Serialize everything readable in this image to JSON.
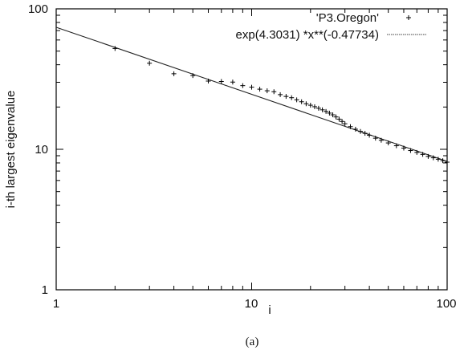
{
  "chart_data": {
    "type": "scatter",
    "title": "",
    "xlabel": "i",
    "ylabel": "i-th largest eigenvalue",
    "x_scale": "log",
    "y_scale": "log",
    "xlim": [
      1,
      100
    ],
    "ylim": [
      1,
      100
    ],
    "x_ticks": [
      "1",
      "10",
      "100"
    ],
    "y_ticks": [
      "1",
      "10",
      "100"
    ],
    "grid": false,
    "legend_position": "top-right",
    "series": [
      {
        "name": "'P3.Oregon'",
        "kind": "points",
        "marker": "+",
        "x": [
          2,
          3,
          4,
          5,
          6,
          7,
          8,
          9,
          10,
          11,
          12,
          13,
          14,
          15,
          16,
          17,
          18,
          19,
          20,
          21,
          22,
          23,
          24,
          25,
          26,
          27,
          28,
          29,
          30,
          32,
          34,
          36,
          38,
          40,
          43,
          46,
          50,
          55,
          60,
          65,
          70,
          75,
          80,
          85,
          90,
          95,
          100
        ],
        "y": [
          52.2,
          41,
          34.5,
          33.5,
          30.6,
          30.4,
          30.1,
          28.4,
          27.7,
          26.8,
          26.1,
          25.7,
          24.5,
          23.8,
          23.3,
          22.5,
          21.8,
          21.1,
          20.6,
          20.1,
          19.6,
          19.1,
          18.6,
          18.1,
          17.6,
          17.0,
          16.4,
          15.8,
          15.2,
          14.5,
          13.9,
          13.4,
          13.0,
          12.6,
          12.0,
          11.6,
          11.1,
          10.6,
          10.2,
          9.8,
          9.5,
          9.2,
          8.9,
          8.7,
          8.5,
          8.3,
          8.1
        ]
      },
      {
        "name": "exp(4.3031) *x**(-0.47734)",
        "kind": "fit",
        "intercept_ln": 4.3031,
        "exponent": -0.47734
      }
    ]
  },
  "caption": "(a)"
}
